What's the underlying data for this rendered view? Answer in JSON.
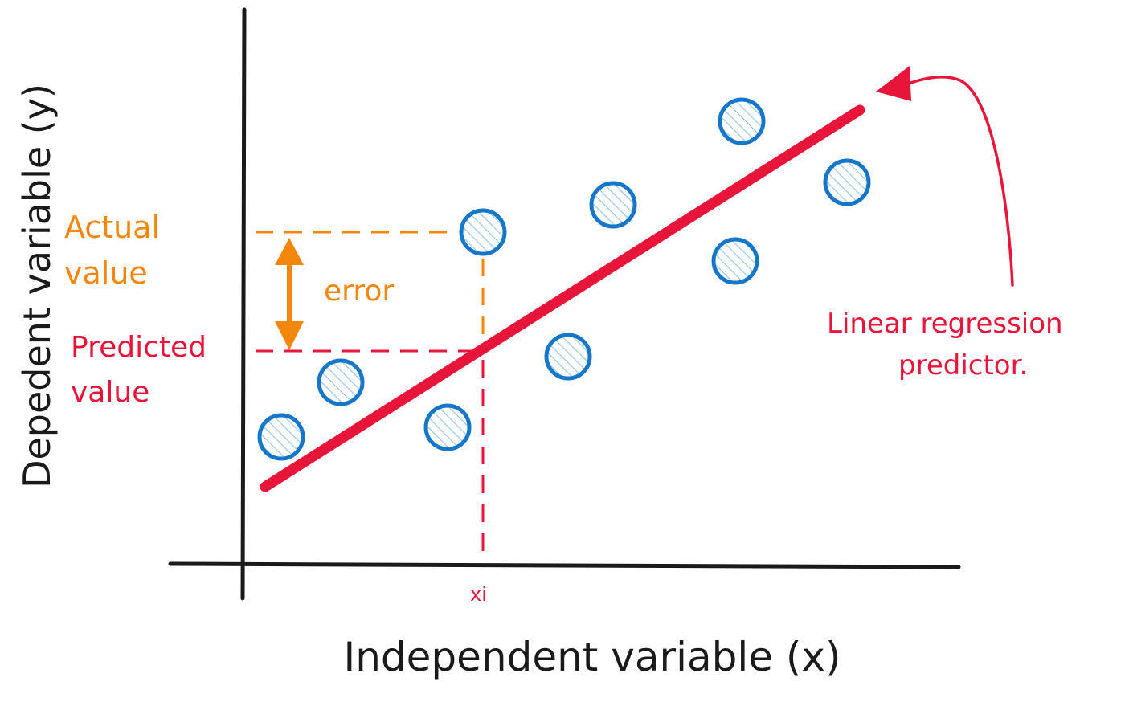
{
  "labels": {
    "y_axis": "Depedent variable (y)",
    "x_axis": "Independent variable (x)",
    "actual_line1": "Actual",
    "actual_line2": "value",
    "error": "error",
    "predicted_line1": "Predicted",
    "predicted_line2": "value",
    "regression_line1": "Linear regression",
    "regression_line2": "predictor.",
    "xi": "xi"
  },
  "colors": {
    "axis": "#1a1a1a",
    "regression": "#e8153b",
    "actual": "#f2870c",
    "point_stroke": "#1677c8",
    "point_hatch": "#8cc4ee"
  }
}
